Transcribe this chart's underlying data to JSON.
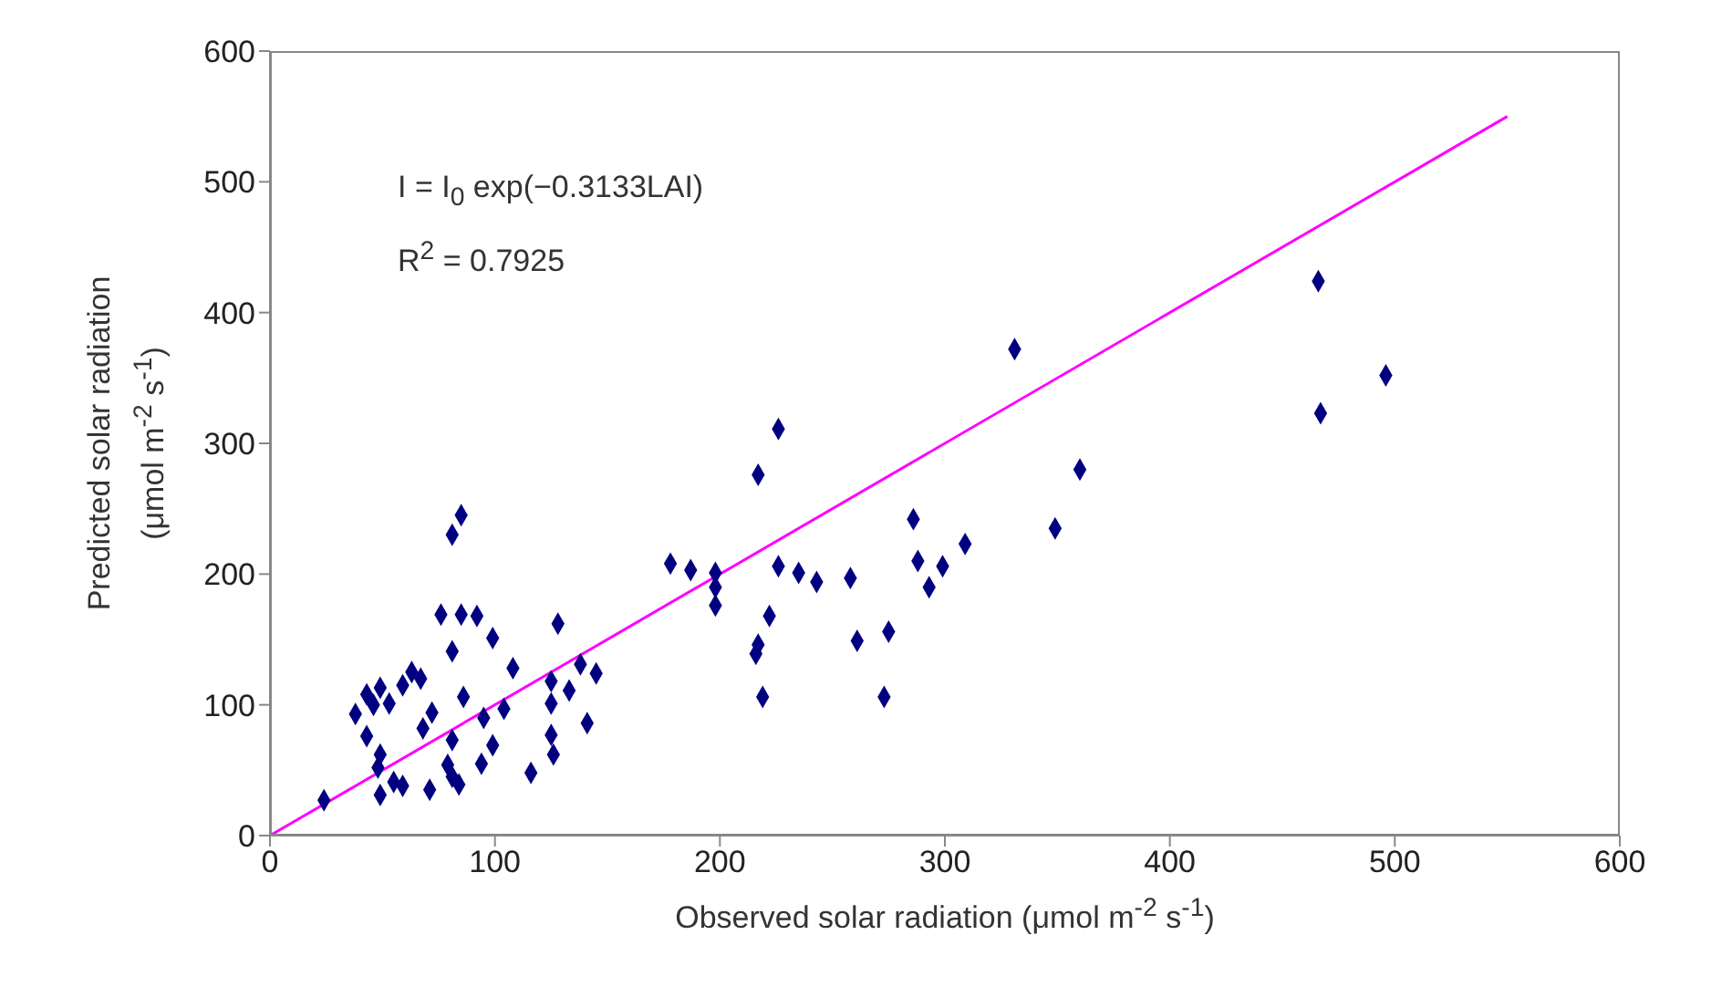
{
  "chart_data": {
    "type": "scatter",
    "xlabel": "Observed solar radiation (μmol m$^{-2}$ s$^{-1}$)",
    "ylabel": "Predicted solar radiation (μmol m$^{-2}$ s$^{-1}$)",
    "xlim": [
      0,
      600
    ],
    "xticks": [
      0,
      100,
      200,
      300,
      400,
      500,
      600
    ],
    "ylim": [
      0,
      600
    ],
    "yticks": [
      0,
      100,
      200,
      300,
      400,
      500,
      600
    ],
    "grid": false,
    "legend": false,
    "marker": "diamond",
    "annotations": [
      "I = I$_{0}$ exp(−0.3133LAI)",
      "R$^{2}$ = 0.7925"
    ],
    "series": [
      {
        "color": "#000080",
        "x": [
          85,
          81,
          76,
          85,
          92,
          128,
          99,
          81,
          108,
          63,
          59,
          67,
          138,
          145,
          125,
          133,
          49,
          43,
          53,
          46,
          38,
          86,
          104,
          125,
          72,
          68,
          95,
          141,
          43,
          81,
          125,
          99,
          49,
          48,
          126,
          79,
          94,
          81,
          84,
          116,
          55,
          59,
          49,
          71,
          24,
          331,
          226,
          217,
          360,
          286,
          349,
          309,
          178,
          187,
          198,
          198,
          198,
          226,
          235,
          243,
          258,
          288,
          299,
          293,
          222,
          217,
          216,
          261,
          275,
          219,
          273,
          466,
          496,
          467
        ],
        "values": [
          245,
          230,
          169,
          169,
          168,
          162,
          151,
          141,
          128,
          125,
          115,
          120,
          131,
          124,
          118,
          111,
          113,
          108,
          101,
          100,
          93,
          106,
          97,
          101,
          94,
          82,
          90,
          86,
          76,
          73,
          77,
          69,
          62,
          52,
          62,
          54,
          55,
          45,
          39,
          48,
          41,
          38,
          31,
          35,
          27,
          372,
          311,
          276,
          280,
          242,
          235,
          223,
          208,
          203,
          201,
          190,
          176,
          206,
          201,
          194,
          197,
          210,
          206,
          190,
          168,
          146,
          139,
          149,
          156,
          106,
          106,
          424,
          352,
          323
        ]
      },
      {
        "type": "line",
        "color": "#ff00ff",
        "marker": "none",
        "line_style": "solid",
        "x": [
          0,
          550
        ],
        "values": [
          0,
          550
        ]
      }
    ]
  }
}
